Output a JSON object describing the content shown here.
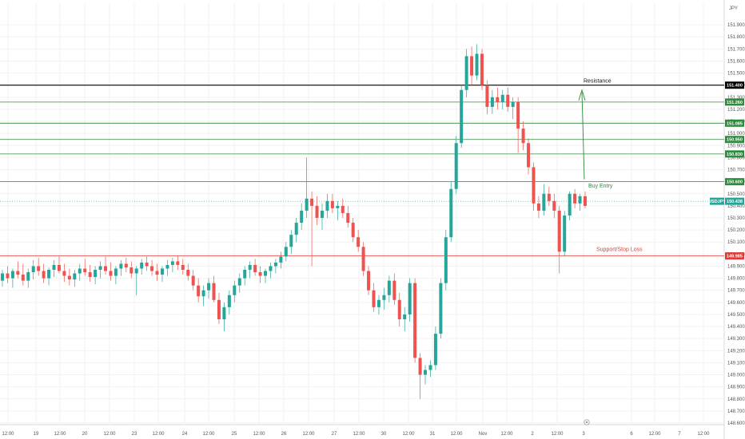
{
  "currency_label": "JPY",
  "chart_data": {
    "type": "candlestick",
    "symbol": "USDJPY",
    "ylim": [
      148.6,
      152.0
    ],
    "y_ticks": [
      "151.900",
      "151.800",
      "151.700",
      "151.600",
      "151.500",
      "151.400",
      "151.300",
      "151.200",
      "151.100",
      "151.000",
      "150.900",
      "150.800",
      "150.700",
      "150.600",
      "150.500",
      "150.400",
      "150.300",
      "150.200",
      "150.100",
      "150.000",
      "149.900",
      "149.800",
      "149.700",
      "149.600",
      "149.500",
      "149.400",
      "149.300",
      "149.200",
      "149.100",
      "149.000",
      "148.900",
      "148.800",
      "148.700",
      "148.600"
    ],
    "x_ticks": [
      "12:00",
      "19",
      "12:00",
      "20",
      "12:00",
      "23",
      "12:00",
      "24",
      "12:00",
      "25",
      "12:00",
      "26",
      "12:00",
      "27",
      "12:00",
      "30",
      "12:00",
      "31",
      "12:00",
      "Nov",
      "12:00",
      "2",
      "12:00",
      "3",
      "6",
      "12:00",
      "7",
      "12:00"
    ],
    "levels": [
      {
        "value": 151.4,
        "label": "151.400",
        "color": "#000000"
      },
      {
        "value": 151.26,
        "label": "151.260",
        "color": "#2e8b3e"
      },
      {
        "value": 151.085,
        "label": "151.085",
        "color": "#2e8b3e"
      },
      {
        "value": 150.95,
        "label": "150.950",
        "color": "#2e8b3e"
      },
      {
        "value": 150.83,
        "label": "150.830",
        "color": "#2e8b3e"
      },
      {
        "value": 150.6,
        "label": "150.600",
        "color": "#2e8b3e"
      },
      {
        "value": 149.985,
        "label": "149.985",
        "color": "#e53935"
      }
    ],
    "current_price": {
      "symbol": "USDJPY",
      "value": 150.438,
      "label": "150.438",
      "color": "#26a69a"
    },
    "annotations": {
      "resistance": "Resistance",
      "buy_entry": "Buy Entry",
      "support_stop_loss": "Support/Stop Loss"
    },
    "up_color": "#26a69a",
    "down_color": "#ef5350",
    "candles": [
      [
        149.78,
        149.87,
        149.73,
        149.84
      ],
      [
        149.84,
        149.9,
        149.76,
        149.8
      ],
      [
        149.8,
        149.88,
        149.72,
        149.86
      ],
      [
        149.86,
        149.94,
        149.8,
        149.83
      ],
      [
        149.83,
        149.92,
        149.74,
        149.78
      ],
      [
        149.78,
        149.88,
        149.72,
        149.85
      ],
      [
        149.85,
        149.95,
        149.79,
        149.9
      ],
      [
        149.9,
        149.97,
        149.82,
        149.86
      ],
      [
        149.86,
        149.92,
        149.76,
        149.8
      ],
      [
        149.8,
        149.89,
        149.74,
        149.87
      ],
      [
        149.87,
        149.95,
        149.81,
        149.91
      ],
      [
        149.91,
        149.98,
        149.84,
        149.86
      ],
      [
        149.86,
        149.92,
        149.77,
        149.82
      ],
      [
        149.82,
        149.88,
        149.74,
        149.79
      ],
      [
        149.79,
        149.87,
        149.73,
        149.84
      ],
      [
        149.84,
        149.92,
        149.78,
        149.88
      ],
      [
        149.88,
        149.96,
        149.82,
        149.85
      ],
      [
        149.85,
        149.91,
        149.77,
        149.81
      ],
      [
        149.81,
        149.9,
        149.75,
        149.87
      ],
      [
        149.87,
        149.94,
        149.8,
        149.9
      ],
      [
        149.9,
        149.98,
        149.83,
        149.86
      ],
      [
        149.86,
        149.93,
        149.78,
        149.82
      ],
      [
        149.82,
        149.9,
        149.75,
        149.88
      ],
      [
        149.88,
        149.95,
        149.82,
        149.92
      ],
      [
        149.92,
        149.97,
        149.85,
        149.89
      ],
      [
        149.89,
        149.94,
        149.8,
        149.84
      ],
      [
        149.84,
        149.9,
        149.66,
        149.88
      ],
      [
        149.88,
        149.96,
        149.83,
        149.93
      ],
      [
        149.93,
        149.98,
        149.86,
        149.9
      ],
      [
        149.9,
        149.95,
        149.82,
        149.86
      ],
      [
        149.86,
        149.92,
        149.78,
        149.83
      ],
      [
        149.83,
        149.9,
        149.77,
        149.88
      ],
      [
        149.88,
        149.95,
        149.82,
        149.91
      ],
      [
        149.91,
        149.97,
        149.85,
        149.94
      ],
      [
        149.94,
        149.99,
        149.87,
        149.91
      ],
      [
        149.91,
        149.96,
        149.83,
        149.87
      ],
      [
        149.87,
        149.92,
        149.78,
        149.82
      ],
      [
        149.82,
        149.87,
        149.7,
        149.74
      ],
      [
        149.74,
        149.8,
        149.6,
        149.65
      ],
      [
        149.65,
        149.74,
        149.57,
        149.7
      ],
      [
        149.7,
        149.8,
        149.63,
        149.76
      ],
      [
        149.76,
        149.82,
        149.6,
        149.62
      ],
      [
        149.62,
        149.68,
        149.42,
        149.46
      ],
      [
        149.46,
        149.6,
        149.36,
        149.56
      ],
      [
        149.56,
        149.7,
        149.5,
        149.66
      ],
      [
        149.66,
        149.78,
        149.6,
        149.74
      ],
      [
        149.74,
        149.84,
        149.68,
        149.8
      ],
      [
        149.8,
        149.9,
        149.74,
        149.87
      ],
      [
        149.87,
        149.94,
        149.8,
        149.91
      ],
      [
        149.91,
        149.96,
        149.82,
        149.85
      ],
      [
        149.85,
        149.9,
        149.76,
        149.82
      ],
      [
        149.82,
        149.88,
        149.76,
        149.86
      ],
      [
        149.86,
        149.93,
        149.8,
        149.9
      ],
      [
        149.9,
        149.96,
        149.84,
        149.93
      ],
      [
        149.93,
        150.02,
        149.88,
        149.98
      ],
      [
        149.98,
        150.1,
        149.94,
        150.06
      ],
      [
        150.06,
        150.2,
        150.0,
        150.16
      ],
      [
        150.16,
        150.3,
        150.1,
        150.26
      ],
      [
        150.26,
        150.42,
        150.2,
        150.36
      ],
      [
        150.36,
        150.8,
        150.3,
        150.46
      ],
      [
        150.46,
        150.52,
        149.9,
        150.4
      ],
      [
        150.4,
        150.48,
        150.24,
        150.3
      ],
      [
        150.3,
        150.42,
        150.2,
        150.36
      ],
      [
        150.36,
        150.5,
        150.3,
        150.44
      ],
      [
        150.44,
        150.5,
        150.34,
        150.38
      ],
      [
        150.38,
        150.44,
        150.28,
        150.4
      ],
      [
        150.4,
        150.46,
        150.3,
        150.34
      ],
      [
        150.34,
        150.4,
        150.22,
        150.26
      ],
      [
        150.26,
        150.3,
        150.1,
        150.14
      ],
      [
        150.14,
        150.2,
        150.02,
        150.06
      ],
      [
        150.06,
        150.1,
        149.82,
        149.86
      ],
      [
        149.86,
        149.9,
        149.66,
        149.7
      ],
      [
        149.7,
        149.76,
        149.52,
        149.56
      ],
      [
        149.56,
        149.66,
        149.5,
        149.62
      ],
      [
        149.62,
        149.72,
        149.54,
        149.66
      ],
      [
        149.66,
        149.82,
        149.6,
        149.78
      ],
      [
        149.78,
        149.84,
        149.58,
        149.62
      ],
      [
        149.62,
        149.68,
        149.4,
        149.46
      ],
      [
        149.46,
        149.56,
        149.36,
        149.5
      ],
      [
        149.5,
        149.8,
        149.44,
        149.76
      ],
      [
        149.76,
        149.8,
        149.1,
        149.14
      ],
      [
        149.14,
        149.18,
        148.8,
        149.0
      ],
      [
        149.0,
        149.08,
        148.92,
        149.04
      ],
      [
        149.04,
        149.12,
        148.98,
        149.08
      ],
      [
        149.08,
        149.4,
        149.04,
        149.34
      ],
      [
        149.34,
        149.8,
        149.3,
        149.76
      ],
      [
        149.76,
        150.2,
        149.7,
        150.14
      ],
      [
        150.14,
        150.6,
        150.1,
        150.54
      ],
      [
        150.54,
        150.98,
        150.5,
        150.92
      ],
      [
        150.92,
        151.4,
        150.88,
        151.36
      ],
      [
        151.36,
        151.7,
        151.3,
        151.64
      ],
      [
        151.64,
        151.72,
        151.4,
        151.48
      ],
      [
        151.48,
        151.74,
        151.44,
        151.66
      ],
      [
        151.66,
        151.7,
        151.36,
        151.4
      ],
      [
        151.4,
        151.44,
        151.16,
        151.22
      ],
      [
        151.22,
        151.36,
        151.16,
        151.3
      ],
      [
        151.3,
        151.38,
        151.2,
        151.26
      ],
      [
        151.26,
        151.36,
        151.2,
        151.32
      ],
      [
        151.32,
        151.38,
        151.18,
        151.22
      ],
      [
        151.22,
        151.3,
        151.12,
        151.26
      ],
      [
        151.26,
        151.3,
        150.84,
        151.04
      ],
      [
        151.04,
        151.1,
        150.86,
        150.92
      ],
      [
        150.92,
        150.96,
        150.66,
        150.72
      ],
      [
        150.72,
        150.76,
        150.36,
        150.42
      ],
      [
        150.42,
        150.48,
        150.3,
        150.36
      ],
      [
        150.36,
        150.58,
        150.32,
        150.5
      ],
      [
        150.5,
        150.56,
        150.4,
        150.44
      ],
      [
        150.44,
        150.5,
        150.3,
        150.36
      ],
      [
        150.36,
        150.4,
        149.84,
        150.02
      ],
      [
        150.02,
        150.36,
        149.98,
        150.32
      ],
      [
        150.32,
        150.52,
        150.28,
        150.5
      ],
      [
        150.5,
        150.54,
        150.38,
        150.42
      ],
      [
        150.42,
        150.5,
        150.36,
        150.48
      ],
      [
        150.48,
        150.52,
        150.38,
        150.4
      ]
    ]
  }
}
